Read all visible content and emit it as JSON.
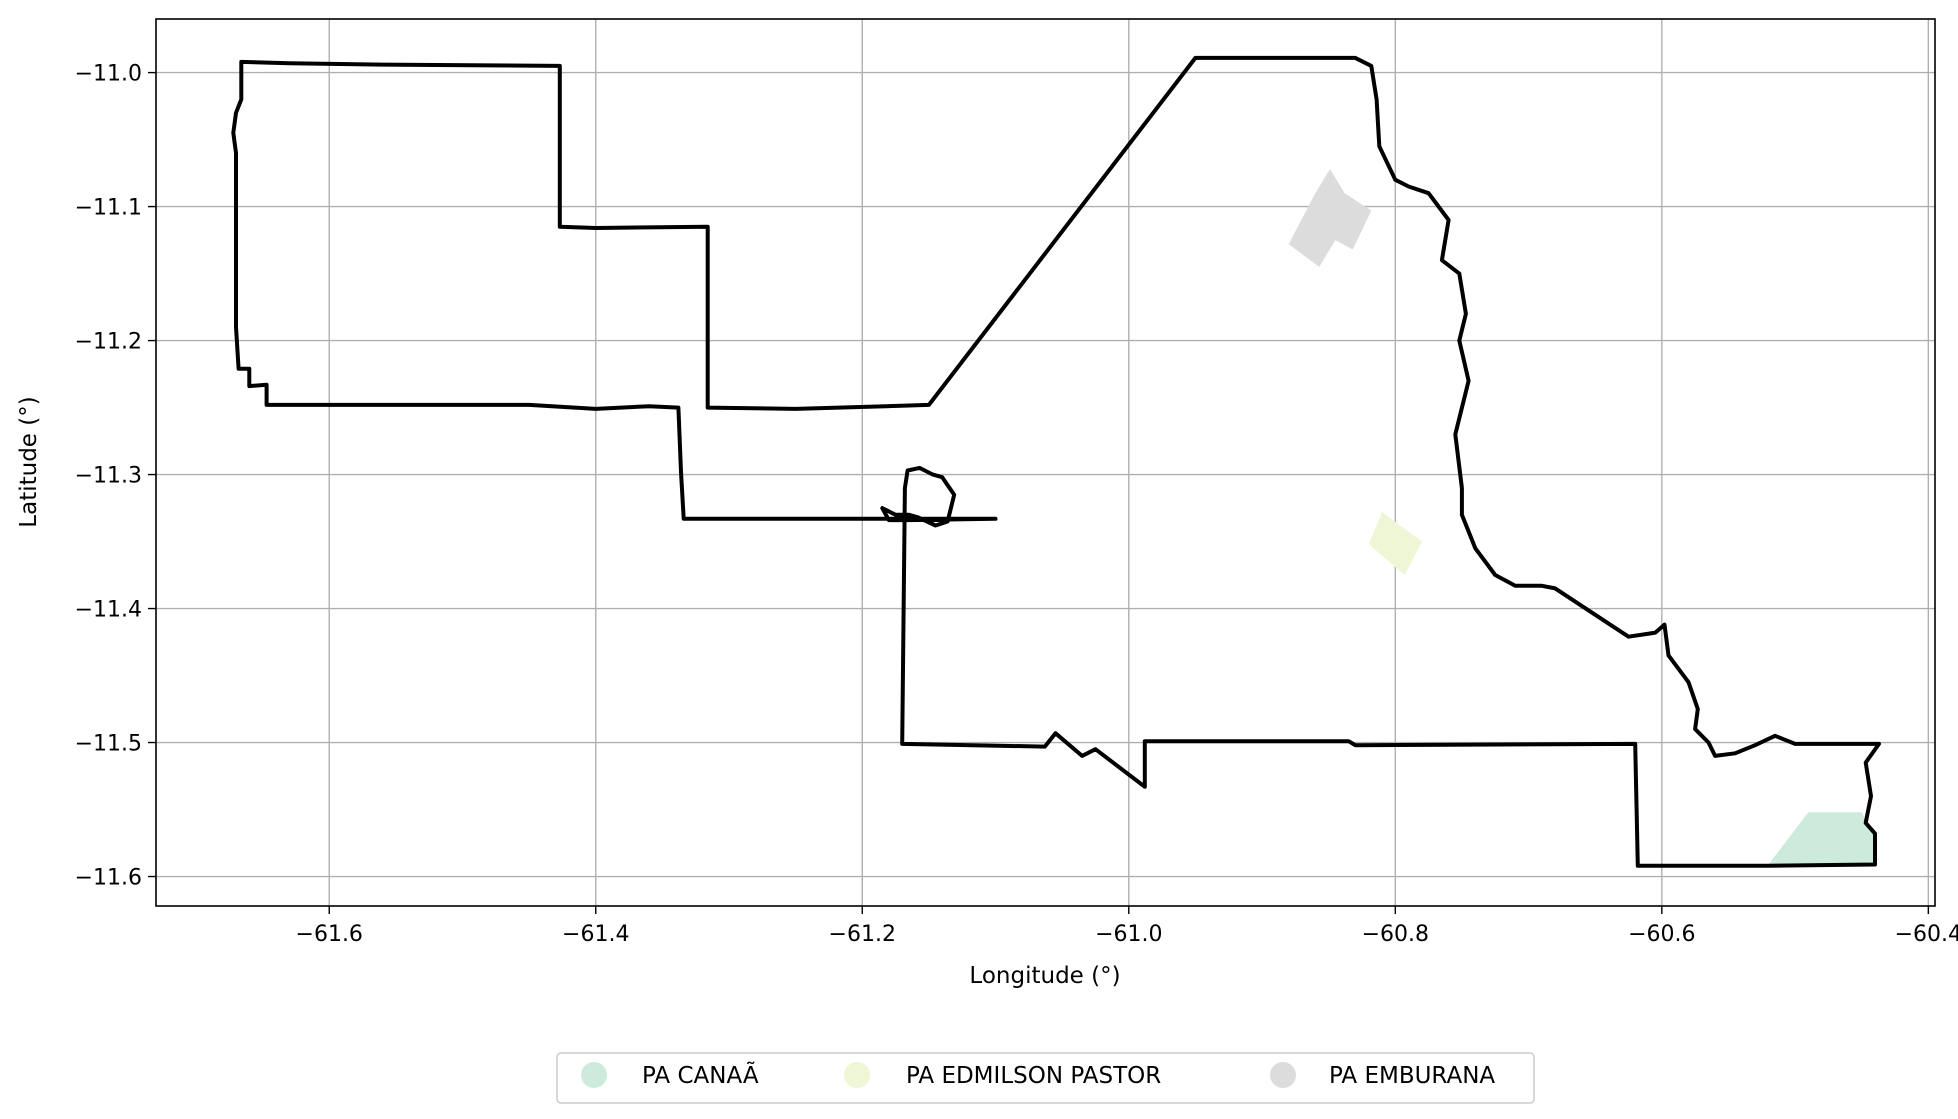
{
  "chart_data": {
    "type": "map",
    "xlabel": "Longitude (°)",
    "ylabel": "Latitude (°)",
    "xlim": [
      -61.73,
      -60.395
    ],
    "ylim": [
      -11.622,
      -10.96
    ],
    "xticks": [
      -61.6,
      -61.4,
      -61.2,
      -61.0,
      -60.8,
      -60.6,
      -60.4
    ],
    "yticks": [
      -11.0,
      -11.1,
      -11.2,
      -11.3,
      -11.4,
      -11.5,
      -11.6
    ],
    "xtick_labels": [
      "−61.6",
      "−61.4",
      "−61.2",
      "−61.0",
      "−60.8",
      "−60.6",
      "−60.4"
    ],
    "ytick_labels": [
      "−11.0",
      "−11.1",
      "−11.2",
      "−11.3",
      "−11.4",
      "−11.5",
      "−11.6"
    ],
    "grid": true,
    "legend_position": "bottom-center",
    "boundary": {
      "color": "#000000",
      "coords": [
        [
          -61.666,
          -10.992
        ],
        [
          -61.63,
          -10.993
        ],
        [
          -61.56,
          -10.994
        ],
        [
          -61.427,
          -10.995
        ],
        [
          -61.427,
          -11.115
        ],
        [
          -61.4,
          -11.116
        ],
        [
          -61.316,
          -11.115
        ],
        [
          -61.316,
          -11.25
        ],
        [
          -61.25,
          -11.251
        ],
        [
          -61.15,
          -11.248
        ],
        [
          -60.95,
          -10.989
        ],
        [
          -60.83,
          -10.989
        ],
        [
          -60.818,
          -10.995
        ],
        [
          -60.814,
          -11.02
        ],
        [
          -60.812,
          -11.055
        ],
        [
          -60.8,
          -11.08
        ],
        [
          -60.79,
          -11.085
        ],
        [
          -60.775,
          -11.09
        ],
        [
          -60.76,
          -11.11
        ],
        [
          -60.765,
          -11.14
        ],
        [
          -60.752,
          -11.15
        ],
        [
          -60.747,
          -11.18
        ],
        [
          -60.752,
          -11.2
        ],
        [
          -60.745,
          -11.23
        ],
        [
          -60.755,
          -11.27
        ],
        [
          -60.75,
          -11.31
        ],
        [
          -60.75,
          -11.33
        ],
        [
          -60.74,
          -11.355
        ],
        [
          -60.725,
          -11.375
        ],
        [
          -60.71,
          -11.383
        ],
        [
          -60.69,
          -11.383
        ],
        [
          -60.68,
          -11.385
        ],
        [
          -60.625,
          -11.421
        ],
        [
          -60.605,
          -11.418
        ],
        [
          -60.598,
          -11.412
        ],
        [
          -60.595,
          -11.435
        ],
        [
          -60.58,
          -11.455
        ],
        [
          -60.573,
          -11.475
        ],
        [
          -60.575,
          -11.49
        ],
        [
          -60.565,
          -11.5
        ],
        [
          -60.56,
          -11.51
        ],
        [
          -60.545,
          -11.508
        ],
        [
          -60.53,
          -11.502
        ],
        [
          -60.515,
          -11.495
        ],
        [
          -60.5,
          -11.501
        ],
        [
          -60.437,
          -11.501
        ],
        [
          -60.447,
          -11.515
        ],
        [
          -60.443,
          -11.54
        ],
        [
          -60.447,
          -11.56
        ],
        [
          -60.44,
          -11.568
        ],
        [
          -60.44,
          -11.591
        ],
        [
          -60.52,
          -11.592
        ],
        [
          -60.618,
          -11.592
        ],
        [
          -60.62,
          -11.501
        ],
        [
          -60.83,
          -11.502
        ],
        [
          -60.835,
          -11.499
        ],
        [
          -60.988,
          -11.499
        ],
        [
          -60.988,
          -11.533
        ],
        [
          -61.025,
          -11.505
        ],
        [
          -61.035,
          -11.51
        ],
        [
          -61.055,
          -11.493
        ],
        [
          -61.063,
          -11.503
        ],
        [
          -61.17,
          -11.501
        ],
        [
          -61.168,
          -11.31
        ],
        [
          -61.166,
          -11.297
        ],
        [
          -61.157,
          -11.295
        ],
        [
          -61.147,
          -11.3
        ],
        [
          -61.14,
          -11.302
        ],
        [
          -61.131,
          -11.315
        ],
        [
          -61.136,
          -11.335
        ],
        [
          -61.145,
          -11.338
        ],
        [
          -61.158,
          -11.332
        ],
        [
          -61.165,
          -11.33
        ],
        [
          -61.175,
          -11.33
        ],
        [
          -61.185,
          -11.325
        ],
        [
          -61.18,
          -11.334
        ],
        [
          -61.165,
          -11.334
        ],
        [
          -61.1,
          -11.333
        ],
        [
          -61.334,
          -11.333
        ],
        [
          -61.336,
          -11.298
        ],
        [
          -61.338,
          -11.25
        ],
        [
          -61.36,
          -11.249
        ],
        [
          -61.4,
          -11.251
        ],
        [
          -61.45,
          -11.248
        ],
        [
          -61.635,
          -11.248
        ],
        [
          -61.647,
          -11.248
        ],
        [
          -61.647,
          -11.233
        ],
        [
          -61.66,
          -11.234
        ],
        [
          -61.66,
          -11.221
        ],
        [
          -61.668,
          -11.221
        ],
        [
          -61.67,
          -11.19
        ],
        [
          -61.67,
          -11.06
        ],
        [
          -61.672,
          -11.045
        ],
        [
          -61.67,
          -11.03
        ],
        [
          -61.666,
          -11.02
        ],
        [
          -61.666,
          -10.992
        ]
      ]
    },
    "series": [
      {
        "name": "PA CANAÃ",
        "color": "#cdebdc",
        "polygon": [
          [
            -60.52,
            -11.591
          ],
          [
            -60.49,
            -11.552
          ],
          [
            -60.45,
            -11.552
          ],
          [
            -60.44,
            -11.57
          ],
          [
            -60.44,
            -11.591
          ]
        ]
      },
      {
        "name": "PA EDMILSON PASTOR",
        "color": "#eef6d5",
        "polygon": [
          [
            -60.81,
            -11.328
          ],
          [
            -60.78,
            -11.35
          ],
          [
            -60.793,
            -11.375
          ],
          [
            -60.82,
            -11.352
          ]
        ]
      },
      {
        "name": "PA EMBURANA",
        "color": "#dcdcdc",
        "polygon": [
          [
            -60.849,
            -11.072
          ],
          [
            -60.838,
            -11.09
          ],
          [
            -60.818,
            -11.103
          ],
          [
            -60.832,
            -11.132
          ],
          [
            -60.845,
            -11.125
          ],
          [
            -60.857,
            -11.145
          ],
          [
            -60.88,
            -11.128
          ],
          [
            -60.86,
            -11.09
          ]
        ]
      }
    ]
  }
}
